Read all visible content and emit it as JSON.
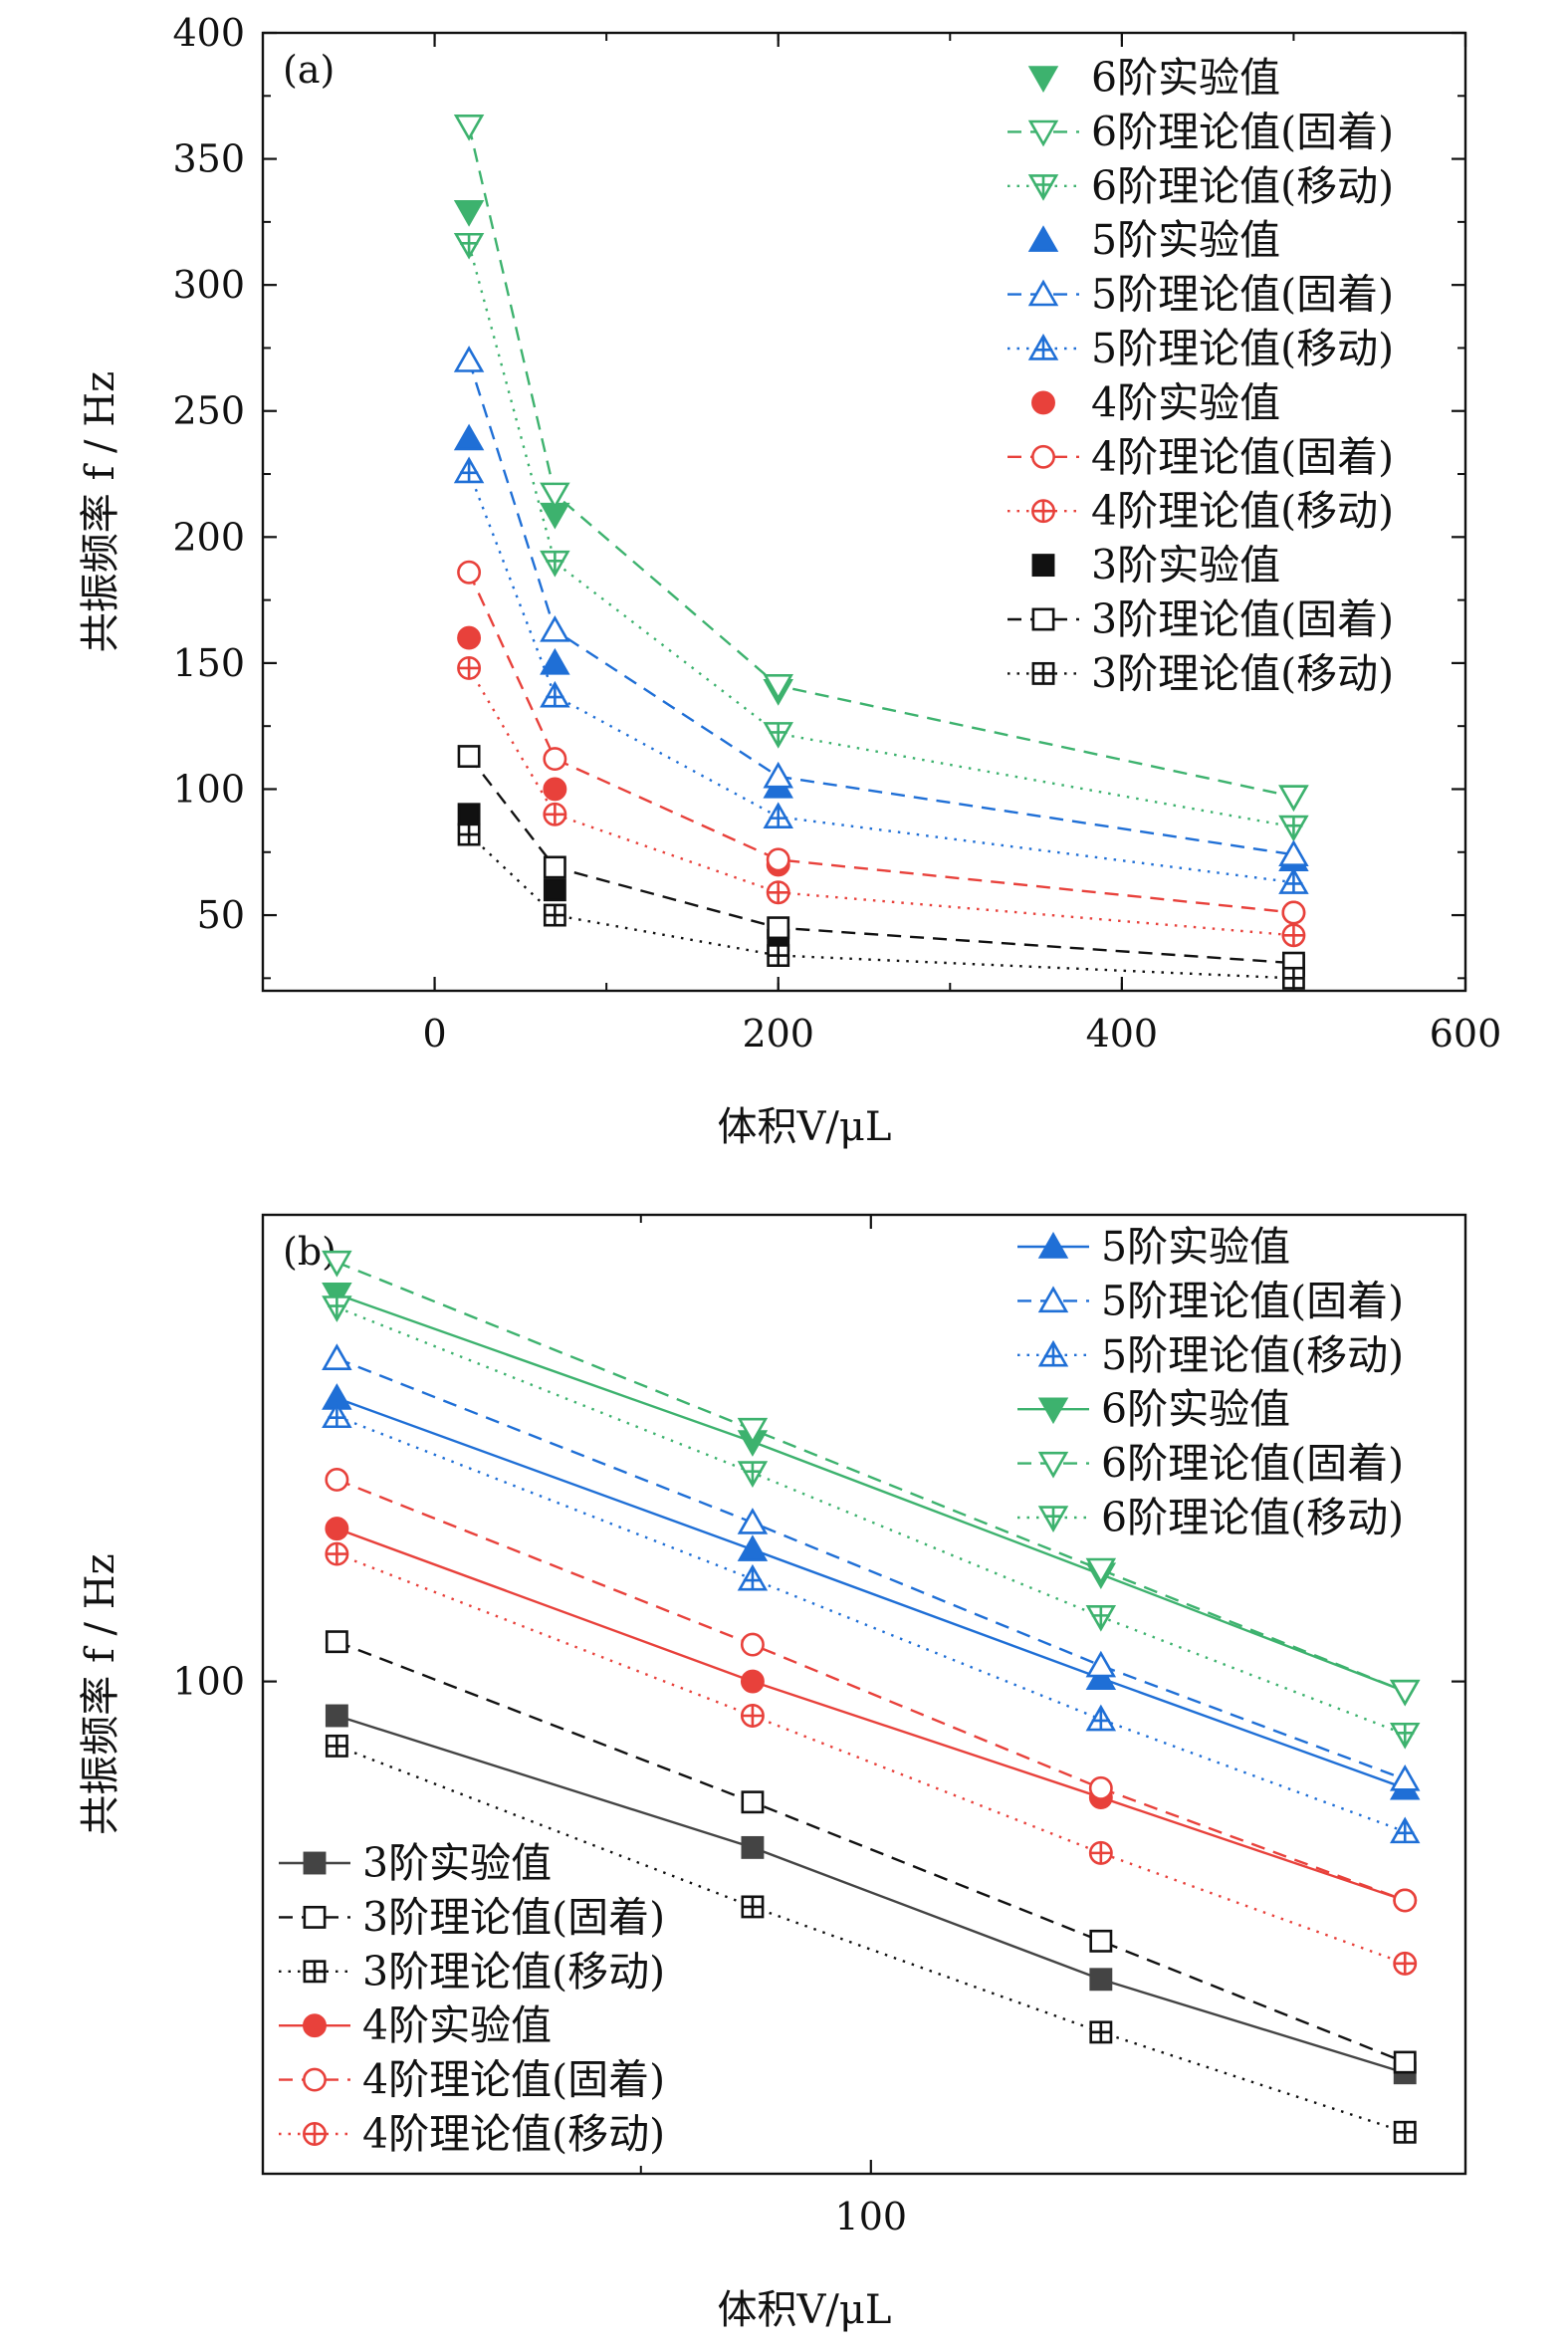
{
  "chart_data": [
    {
      "type": "line",
      "panel_label": "(a)",
      "xlabel": "体积V/μL",
      "ylabel": "共振频率 f / Hz",
      "xlim": [
        -100,
        600
      ],
      "ylim": [
        20,
        400
      ],
      "xticks": [
        0,
        200,
        400,
        600
      ],
      "yticks": [
        50,
        100,
        150,
        200,
        250,
        300,
        350,
        400
      ],
      "x": [
        20,
        70,
        200,
        500
      ],
      "legend_position": "top-right",
      "series": [
        {
          "name": "6阶实验值",
          "values": [
            329,
            209,
            139,
            97
          ],
          "color": "#3db26e",
          "marker": "tri-down-filled",
          "line": "none"
        },
        {
          "name": "6阶理论值(固着)",
          "values": [
            363,
            217,
            141,
            97
          ],
          "color": "#3db26e",
          "marker": "tri-down-open",
          "line": "dashed"
        },
        {
          "name": "6阶理论值(移动)",
          "values": [
            316,
            190,
            122,
            85
          ],
          "color": "#3db26e",
          "marker": "tri-down-plus",
          "line": "dotted"
        },
        {
          "name": "5阶实验值",
          "values": [
            239,
            150,
            101,
            72
          ],
          "color": "#1f6fd6",
          "marker": "tri-up-filled",
          "line": "none"
        },
        {
          "name": "5阶理论值(固着)",
          "values": [
            270,
            163,
            105,
            74
          ],
          "color": "#1f6fd6",
          "marker": "tri-up-open",
          "line": "dashed"
        },
        {
          "name": "5阶理论值(移动)",
          "values": [
            226,
            137,
            89,
            63
          ],
          "color": "#1f6fd6",
          "marker": "tri-up-plus",
          "line": "dotted"
        },
        {
          "name": "4阶实验值",
          "values": [
            160,
            100,
            70,
            51
          ],
          "color": "#e8413b",
          "marker": "circle-filled",
          "line": "none"
        },
        {
          "name": "4阶理论值(固着)",
          "values": [
            186,
            112,
            72,
            51
          ],
          "color": "#e8413b",
          "marker": "circle-open",
          "line": "dashed"
        },
        {
          "name": "4阶理论值(移动)",
          "values": [
            148,
            90,
            59,
            42
          ],
          "color": "#e8413b",
          "marker": "circle-plus",
          "line": "dotted"
        },
        {
          "name": "3阶实验值",
          "values": [
            90,
            60,
            40,
            30
          ],
          "color": "#111111",
          "marker": "square-filled",
          "line": "none"
        },
        {
          "name": "3阶理论值(固着)",
          "values": [
            113,
            69,
            45,
            31
          ],
          "color": "#111111",
          "marker": "square-open",
          "line": "dashed"
        },
        {
          "name": "3阶理论值(移动)",
          "values": [
            82,
            50,
            34,
            25
          ],
          "color": "#111111",
          "marker": "square-plus",
          "line": "dotted"
        }
      ],
      "legend_order": [
        0,
        1,
        2,
        3,
        4,
        5,
        6,
        7,
        8,
        9,
        10,
        11
      ]
    },
    {
      "type": "line",
      "panel_label": "(b)",
      "xlabel": "体积V/μL",
      "ylabel": "共振频率 f / Hz",
      "xscale": "log",
      "yscale": "log",
      "xlim": [
        16,
        600
      ],
      "ylim": [
        22,
        420
      ],
      "xticks": [
        100
      ],
      "xticks_minor": [
        50
      ],
      "yticks": [
        100
      ],
      "x": [
        20,
        70,
        200,
        500
      ],
      "legend_position": "top-right and bottom-left",
      "series": [
        {
          "name": "6阶实验值",
          "values": [
            329,
            209,
            139,
            97
          ],
          "color": "#3db26e",
          "marker": "tri-down-filled",
          "line": "solid"
        },
        {
          "name": "6阶理论值(固着)",
          "values": [
            363,
            217,
            141,
            97
          ],
          "color": "#3db26e",
          "marker": "tri-down-open",
          "line": "dashed"
        },
        {
          "name": "6阶理论值(移动)",
          "values": [
            316,
            190,
            122,
            85
          ],
          "color": "#3db26e",
          "marker": "tri-down-plus",
          "line": "dotted"
        },
        {
          "name": "5阶实验值",
          "values": [
            239,
            150,
            101,
            72
          ],
          "color": "#1f6fd6",
          "marker": "tri-up-filled",
          "line": "solid"
        },
        {
          "name": "5阶理论值(固着)",
          "values": [
            270,
            163,
            105,
            74
          ],
          "color": "#1f6fd6",
          "marker": "tri-up-open",
          "line": "dashed"
        },
        {
          "name": "5阶理论值(移动)",
          "values": [
            226,
            137,
            89,
            63
          ],
          "color": "#1f6fd6",
          "marker": "tri-up-plus",
          "line": "dotted"
        },
        {
          "name": "4阶实验值",
          "values": [
            160,
            100,
            70,
            51
          ],
          "color": "#e8413b",
          "marker": "circle-filled",
          "line": "solid"
        },
        {
          "name": "4阶理论值(固着)",
          "values": [
            186,
            112,
            72,
            51
          ],
          "color": "#e8413b",
          "marker": "circle-open",
          "line": "dashed"
        },
        {
          "name": "4阶理论值(移动)",
          "values": [
            148,
            90,
            59,
            42
          ],
          "color": "#e8413b",
          "marker": "circle-plus",
          "line": "dotted"
        },
        {
          "name": "3阶实验值",
          "values": [
            90,
            60,
            40,
            30
          ],
          "color": "#444444",
          "marker": "square-filled",
          "line": "solid"
        },
        {
          "name": "3阶理论值(固着)",
          "values": [
            113,
            69,
            45,
            31
          ],
          "color": "#111111",
          "marker": "square-open",
          "line": "dashed"
        },
        {
          "name": "3阶理论值(移动)",
          "values": [
            82,
            50,
            34,
            25
          ],
          "color": "#111111",
          "marker": "square-plus",
          "line": "dotted"
        }
      ],
      "legend_order_top_right": [
        3,
        4,
        5,
        0,
        1,
        2
      ],
      "legend_order_bottom_left": [
        9,
        10,
        11,
        6,
        7,
        8
      ]
    }
  ]
}
